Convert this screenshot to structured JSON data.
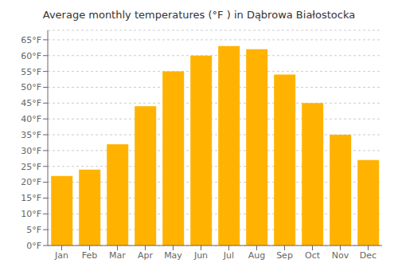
{
  "chart_data": {
    "type": "bar",
    "title": "Average monthly temperatures (°F ) in Dąbrowa Białostocka",
    "categories": [
      "Jan",
      "Feb",
      "Mar",
      "Apr",
      "May",
      "Jun",
      "Jul",
      "Aug",
      "Sep",
      "Oct",
      "Nov",
      "Dec"
    ],
    "values": [
      22,
      24,
      32,
      44,
      55,
      60,
      63,
      62,
      54,
      45,
      35,
      27
    ],
    "color": "#FFB300",
    "ylim": [
      0,
      68
    ],
    "yticks": [
      {
        "value": 0,
        "label": "0°F"
      },
      {
        "value": 5,
        "label": "5°F"
      },
      {
        "value": 10,
        "label": "10°F"
      },
      {
        "value": 15,
        "label": "15°F"
      },
      {
        "value": 20,
        "label": "20°F"
      },
      {
        "value": 25,
        "label": "25°F"
      },
      {
        "value": 30,
        "label": "30°F"
      },
      {
        "value": 35,
        "label": "35°F"
      },
      {
        "value": 40,
        "label": "40°F"
      },
      {
        "value": 45,
        "label": "45°F"
      },
      {
        "value": 50,
        "label": "50°F"
      },
      {
        "value": 55,
        "label": "55°F"
      },
      {
        "value": 60,
        "label": "60°F"
      },
      {
        "value": 65,
        "label": "65°F"
      }
    ],
    "grid": true
  }
}
